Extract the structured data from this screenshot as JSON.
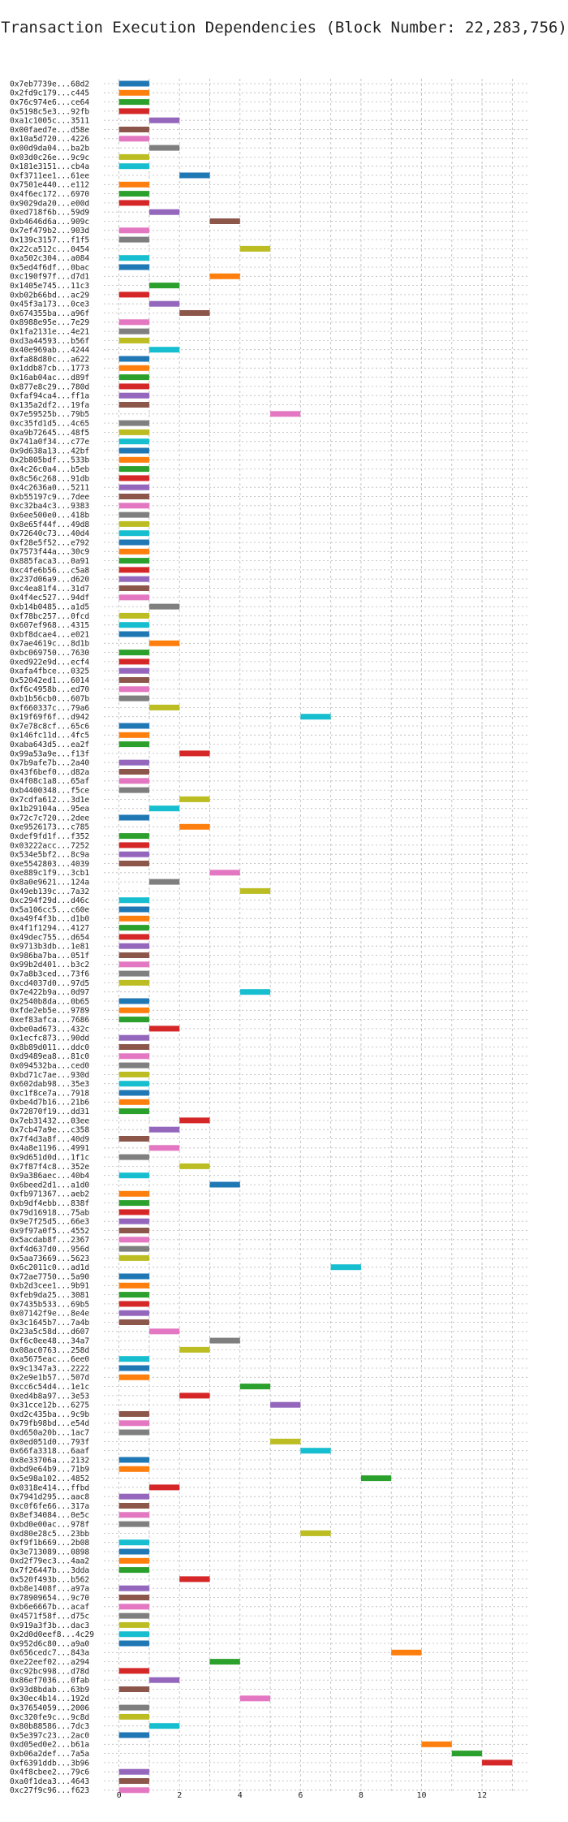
{
  "chart_data": {
    "type": "bar",
    "orientation": "horizontal",
    "title": "Transaction Execution Dependencies (Block Number: 22,283,756)",
    "xlabel": "",
    "ylabel": "",
    "xlim": [
      -0.5,
      13.5
    ],
    "xticks": [
      0,
      2,
      4,
      6,
      8,
      10,
      12
    ],
    "grid": true,
    "palette": [
      "#1f77b4",
      "#ff7f0e",
      "#2ca02c",
      "#d62728",
      "#9467bd",
      "#8c564b",
      "#e377c2",
      "#7f7f7f",
      "#bcbd22",
      "#17becf"
    ],
    "transactions": [
      {
        "label": "0x7eb7739e...68d2",
        "start": 0,
        "end": 1
      },
      {
        "label": "0x2fd9c179...c445",
        "start": 0,
        "end": 1
      },
      {
        "label": "0x76c974e6...ce64",
        "start": 0,
        "end": 1
      },
      {
        "label": "0x5198c5e3...92fb",
        "start": 0,
        "end": 1
      },
      {
        "label": "0xa1c1005c...3511",
        "start": 1,
        "end": 2
      },
      {
        "label": "0x00faed7e...d58e",
        "start": 0,
        "end": 1
      },
      {
        "label": "0x10a5d720...4226",
        "start": 0,
        "end": 1
      },
      {
        "label": "0x00d9da04...ba2b",
        "start": 1,
        "end": 2
      },
      {
        "label": "0x03d0c26e...9c9c",
        "start": 0,
        "end": 1
      },
      {
        "label": "0x181e3151...cb4a",
        "start": 0,
        "end": 1
      },
      {
        "label": "0xf3711ee1...61ee",
        "start": 2,
        "end": 3
      },
      {
        "label": "0x7501e440...e112",
        "start": 0,
        "end": 1
      },
      {
        "label": "0x4f6ec172...6970",
        "start": 0,
        "end": 1
      },
      {
        "label": "0x9029da20...e00d",
        "start": 0,
        "end": 1
      },
      {
        "label": "0xed718f6b...59d9",
        "start": 1,
        "end": 2
      },
      {
        "label": "0xb4646d6a...909c",
        "start": 3,
        "end": 4
      },
      {
        "label": "0x7ef479b2...903d",
        "start": 0,
        "end": 1
      },
      {
        "label": "0x139c3157...f1f5",
        "start": 0,
        "end": 1
      },
      {
        "label": "0x22ca512c...0454",
        "start": 4,
        "end": 5
      },
      {
        "label": "0xa502c304...a084",
        "start": 0,
        "end": 1
      },
      {
        "label": "0x5ed4f6df...0bac",
        "start": 0,
        "end": 1
      },
      {
        "label": "0xc190f97f...d7d1",
        "start": 3,
        "end": 4
      },
      {
        "label": "0x1405e745...11c3",
        "start": 1,
        "end": 2
      },
      {
        "label": "0xb02b66bd...ac29",
        "start": 0,
        "end": 1
      },
      {
        "label": "0x45f3a173...0ce3",
        "start": 1,
        "end": 2
      },
      {
        "label": "0x674355ba...a96f",
        "start": 2,
        "end": 3
      },
      {
        "label": "0x8988e95e...7e29",
        "start": 0,
        "end": 1
      },
      {
        "label": "0x1fa2131e...4e21",
        "start": 0,
        "end": 1
      },
      {
        "label": "0xd3a44593...b56f",
        "start": 0,
        "end": 1
      },
      {
        "label": "0x40e969ab...4244",
        "start": 1,
        "end": 2
      },
      {
        "label": "0xfa88d80c...a622",
        "start": 0,
        "end": 1
      },
      {
        "label": "0x1ddb87cb...1773",
        "start": 0,
        "end": 1
      },
      {
        "label": "0x16ab04ac...d89f",
        "start": 0,
        "end": 1
      },
      {
        "label": "0x877e8c29...780d",
        "start": 0,
        "end": 1
      },
      {
        "label": "0xfaf94ca4...ff1a",
        "start": 0,
        "end": 1
      },
      {
        "label": "0x135a2df2...19fa",
        "start": 0,
        "end": 1
      },
      {
        "label": "0x7e59525b...79b5",
        "start": 5,
        "end": 6
      },
      {
        "label": "0xc35fd1d5...4c65",
        "start": 0,
        "end": 1
      },
      {
        "label": "0xa9b72645...48f5",
        "start": 0,
        "end": 1
      },
      {
        "label": "0x741a0f34...c77e",
        "start": 0,
        "end": 1
      },
      {
        "label": "0x9d638a13...42bf",
        "start": 0,
        "end": 1
      },
      {
        "label": "0x2b805bdf...533b",
        "start": 0,
        "end": 1
      },
      {
        "label": "0x4c26c0a4...b5eb",
        "start": 0,
        "end": 1
      },
      {
        "label": "0x8c56c268...91db",
        "start": 0,
        "end": 1
      },
      {
        "label": "0x4c2636a0...5211",
        "start": 0,
        "end": 1
      },
      {
        "label": "0xb55197c9...7dee",
        "start": 0,
        "end": 1
      },
      {
        "label": "0xc32ba4c3...9383",
        "start": 0,
        "end": 1
      },
      {
        "label": "0x6ee500e0...418b",
        "start": 0,
        "end": 1
      },
      {
        "label": "0x8e65f44f...49d8",
        "start": 0,
        "end": 1
      },
      {
        "label": "0x72640c73...40d4",
        "start": 0,
        "end": 1
      },
      {
        "label": "0xf28e5f52...e792",
        "start": 0,
        "end": 1
      },
      {
        "label": "0x7573f44a...30c9",
        "start": 0,
        "end": 1
      },
      {
        "label": "0x885faca3...0a91",
        "start": 0,
        "end": 1
      },
      {
        "label": "0xc4fe6b56...c5a8",
        "start": 0,
        "end": 1
      },
      {
        "label": "0x237d06a9...d620",
        "start": 0,
        "end": 1
      },
      {
        "label": "0xc4ea81f4...31d7",
        "start": 0,
        "end": 1
      },
      {
        "label": "0x4f4ec527...94df",
        "start": 0,
        "end": 1
      },
      {
        "label": "0xb14b0485...a1d5",
        "start": 1,
        "end": 2
      },
      {
        "label": "0xf78bc257...0fcd",
        "start": 0,
        "end": 1
      },
      {
        "label": "0x607ef968...4315",
        "start": 0,
        "end": 1
      },
      {
        "label": "0xbf8dcae4...e021",
        "start": 0,
        "end": 1
      },
      {
        "label": "0x7ae4619c...8d1b",
        "start": 1,
        "end": 2
      },
      {
        "label": "0xbc069750...7630",
        "start": 0,
        "end": 1
      },
      {
        "label": "0xed922e9d...ecf4",
        "start": 0,
        "end": 1
      },
      {
        "label": "0xafa4fbce...0325",
        "start": 0,
        "end": 1
      },
      {
        "label": "0x52042ed1...6014",
        "start": 0,
        "end": 1
      },
      {
        "label": "0xf6c4958b...ed70",
        "start": 0,
        "end": 1
      },
      {
        "label": "0xb1b56cb0...607b",
        "start": 0,
        "end": 1
      },
      {
        "label": "0xf660337c...79a6",
        "start": 1,
        "end": 2
      },
      {
        "label": "0x19f69f6f...d942",
        "start": 6,
        "end": 7
      },
      {
        "label": "0x7e78c8cf...65c6",
        "start": 0,
        "end": 1
      },
      {
        "label": "0x146fc11d...4fc5",
        "start": 0,
        "end": 1
      },
      {
        "label": "0xaba643d5...ea2f",
        "start": 0,
        "end": 1
      },
      {
        "label": "0x99a53a9e...f13f",
        "start": 2,
        "end": 3
      },
      {
        "label": "0x7b9afe7b...2a40",
        "start": 0,
        "end": 1
      },
      {
        "label": "0x43f6bef0...d82a",
        "start": 0,
        "end": 1
      },
      {
        "label": "0x4f08c1a8...65af",
        "start": 0,
        "end": 1
      },
      {
        "label": "0xb4400348...f5ce",
        "start": 0,
        "end": 1
      },
      {
        "label": "0x7cdfa612...3d1e",
        "start": 2,
        "end": 3
      },
      {
        "label": "0x1b29104a...95ea",
        "start": 1,
        "end": 2
      },
      {
        "label": "0x72c7c720...2dee",
        "start": 0,
        "end": 1
      },
      {
        "label": "0xe9526173...c785",
        "start": 2,
        "end": 3
      },
      {
        "label": "0xdef9fd1f...f352",
        "start": 0,
        "end": 1
      },
      {
        "label": "0x03222acc...7252",
        "start": 0,
        "end": 1
      },
      {
        "label": "0x534e5bf2...8c9a",
        "start": 0,
        "end": 1
      },
      {
        "label": "0xe5542803...4039",
        "start": 0,
        "end": 1
      },
      {
        "label": "0xe889c1f9...3cb1",
        "start": 3,
        "end": 4
      },
      {
        "label": "0x8a0e9621...124a",
        "start": 1,
        "end": 2
      },
      {
        "label": "0x49eb139c...7a32",
        "start": 4,
        "end": 5
      },
      {
        "label": "0xc294f29d...d46c",
        "start": 0,
        "end": 1
      },
      {
        "label": "0x5a106cc5...c60e",
        "start": 0,
        "end": 1
      },
      {
        "label": "0xa49f4f3b...d1b0",
        "start": 0,
        "end": 1
      },
      {
        "label": "0x4f1f1294...4127",
        "start": 0,
        "end": 1
      },
      {
        "label": "0x49dec755...d654",
        "start": 0,
        "end": 1
      },
      {
        "label": "0x9713b3db...1e81",
        "start": 0,
        "end": 1
      },
      {
        "label": "0x986ba7ba...051f",
        "start": 0,
        "end": 1
      },
      {
        "label": "0x99b2d401...b3c2",
        "start": 0,
        "end": 1
      },
      {
        "label": "0x7a8b3ced...73f6",
        "start": 0,
        "end": 1
      },
      {
        "label": "0xcd4037d0...97d5",
        "start": 0,
        "end": 1
      },
      {
        "label": "0x7e422b9a...0d97",
        "start": 4,
        "end": 5
      },
      {
        "label": "0x2540b8da...0b65",
        "start": 0,
        "end": 1
      },
      {
        "label": "0xfde2eb5e...9789",
        "start": 0,
        "end": 1
      },
      {
        "label": "0xef83afca...7686",
        "start": 0,
        "end": 1
      },
      {
        "label": "0xbe0ad673...432c",
        "start": 1,
        "end": 2
      },
      {
        "label": "0x1ecfc873...90dd",
        "start": 0,
        "end": 1
      },
      {
        "label": "0x8b89d011...ddc0",
        "start": 0,
        "end": 1
      },
      {
        "label": "0xd9489ea8...81c0",
        "start": 0,
        "end": 1
      },
      {
        "label": "0x094532ba...ced0",
        "start": 0,
        "end": 1
      },
      {
        "label": "0xbd71c7ae...930d",
        "start": 0,
        "end": 1
      },
      {
        "label": "0x602dab98...35e3",
        "start": 0,
        "end": 1
      },
      {
        "label": "0xc1f8ce7a...7918",
        "start": 0,
        "end": 1
      },
      {
        "label": "0xbe4d7b16...21b6",
        "start": 0,
        "end": 1
      },
      {
        "label": "0x72870f19...dd31",
        "start": 0,
        "end": 1
      },
      {
        "label": "0x7eb31432...03ee",
        "start": 2,
        "end": 3
      },
      {
        "label": "0x7cb47a9e...c358",
        "start": 1,
        "end": 2
      },
      {
        "label": "0x7f4d3a8f...40d9",
        "start": 0,
        "end": 1
      },
      {
        "label": "0x4a8e1196...4991",
        "start": 1,
        "end": 2
      },
      {
        "label": "0x9d651d0d...1f1c",
        "start": 0,
        "end": 1
      },
      {
        "label": "0x7f87f4c8...352e",
        "start": 2,
        "end": 3
      },
      {
        "label": "0x9a386aec...40b4",
        "start": 0,
        "end": 1
      },
      {
        "label": "0x6beed2d1...a1d0",
        "start": 3,
        "end": 4
      },
      {
        "label": "0xfb971367...aeb2",
        "start": 0,
        "end": 1
      },
      {
        "label": "0xb9df4ebb...838f",
        "start": 0,
        "end": 1
      },
      {
        "label": "0x79d16918...75ab",
        "start": 0,
        "end": 1
      },
      {
        "label": "0x9e7f25d5...66e3",
        "start": 0,
        "end": 1
      },
      {
        "label": "0x9f97a0f5...4552",
        "start": 0,
        "end": 1
      },
      {
        "label": "0x5acdab8f...2367",
        "start": 0,
        "end": 1
      },
      {
        "label": "0xf4d637d0...956d",
        "start": 0,
        "end": 1
      },
      {
        "label": "0x5aa73669...5623",
        "start": 0,
        "end": 1
      },
      {
        "label": "0x6c2011c0...ad1d",
        "start": 7,
        "end": 8
      },
      {
        "label": "0x72ae7750...5a90",
        "start": 0,
        "end": 1
      },
      {
        "label": "0xb2d3cee1...9b91",
        "start": 0,
        "end": 1
      },
      {
        "label": "0xfeb9da25...3081",
        "start": 0,
        "end": 1
      },
      {
        "label": "0x7435b533...69b5",
        "start": 0,
        "end": 1
      },
      {
        "label": "0x07142f9e...8e4e",
        "start": 0,
        "end": 1
      },
      {
        "label": "0x3c1645b7...7a4b",
        "start": 0,
        "end": 1
      },
      {
        "label": "0x23a5c58d...d607",
        "start": 1,
        "end": 2
      },
      {
        "label": "0xf6c0ee48...34a7",
        "start": 3,
        "end": 4
      },
      {
        "label": "0x08ac0763...258d",
        "start": 2,
        "end": 3
      },
      {
        "label": "0xa5675eac...6ee0",
        "start": 0,
        "end": 1
      },
      {
        "label": "0x9c1347a3...2222",
        "start": 0,
        "end": 1
      },
      {
        "label": "0x2e9e1b57...507d",
        "start": 0,
        "end": 1
      },
      {
        "label": "0xcc6c54d4...1e1c",
        "start": 4,
        "end": 5
      },
      {
        "label": "0xed4b8a97...3e53",
        "start": 2,
        "end": 3
      },
      {
        "label": "0x31cce12b...6275",
        "start": 5,
        "end": 6
      },
      {
        "label": "0xd2c435ba...9c9b",
        "start": 0,
        "end": 1
      },
      {
        "label": "0x79fb98bd...e54d",
        "start": 0,
        "end": 1
      },
      {
        "label": "0xd650a20b...1ac7",
        "start": 0,
        "end": 1
      },
      {
        "label": "0x0ed051d0...793f",
        "start": 5,
        "end": 6
      },
      {
        "label": "0x66fa3318...6aaf",
        "start": 6,
        "end": 7
      },
      {
        "label": "0x8e33706a...2132",
        "start": 0,
        "end": 1
      },
      {
        "label": "0xbd9e64b9...71b9",
        "start": 0,
        "end": 1
      },
      {
        "label": "0x5e98a102...4852",
        "start": 8,
        "end": 9
      },
      {
        "label": "0x0318e414...ffbd",
        "start": 1,
        "end": 2
      },
      {
        "label": "0x7941d295...aac8",
        "start": 0,
        "end": 1
      },
      {
        "label": "0xc0f6fe66...317a",
        "start": 0,
        "end": 1
      },
      {
        "label": "0x8ef34084...0e5c",
        "start": 0,
        "end": 1
      },
      {
        "label": "0xbd0e00ac...978f",
        "start": 0,
        "end": 1
      },
      {
        "label": "0xd80e28c5...23bb",
        "start": 6,
        "end": 7
      },
      {
        "label": "0xf9f1b669...2b08",
        "start": 0,
        "end": 1
      },
      {
        "label": "0x3e713089...0898",
        "start": 0,
        "end": 1
      },
      {
        "label": "0xd2f79ec3...4aa2",
        "start": 0,
        "end": 1
      },
      {
        "label": "0x7f26447b...3dda",
        "start": 0,
        "end": 1
      },
      {
        "label": "0x520f493b...b562",
        "start": 2,
        "end": 3
      },
      {
        "label": "0xb8e1408f...a97a",
        "start": 0,
        "end": 1
      },
      {
        "label": "0x78909654...9c70",
        "start": 0,
        "end": 1
      },
      {
        "label": "0xb6e6667b...acaf",
        "start": 0,
        "end": 1
      },
      {
        "label": "0x4571f58f...d75c",
        "start": 0,
        "end": 1
      },
      {
        "label": "0x919a3f3b...dac3",
        "start": 0,
        "end": 1
      },
      {
        "label": "0x2d0d0eef8...4c29",
        "start": 0,
        "end": 1
      },
      {
        "label": "0x952d6c80...a9a0",
        "start": 0,
        "end": 1
      },
      {
        "label": "0x656cedc7...843a",
        "start": 9,
        "end": 10
      },
      {
        "label": "0xe22eef02...a294",
        "start": 3,
        "end": 4
      },
      {
        "label": "0xc92bc998...d78d",
        "start": 0,
        "end": 1
      },
      {
        "label": "0x86ef7036...0fab",
        "start": 1,
        "end": 2
      },
      {
        "label": "0x93d8bdab...63b9",
        "start": 0,
        "end": 1
      },
      {
        "label": "0x30ec4b14...192d",
        "start": 4,
        "end": 5
      },
      {
        "label": "0x37654059...2006",
        "start": 0,
        "end": 1
      },
      {
        "label": "0xc320fe9c...9c8d",
        "start": 0,
        "end": 1
      },
      {
        "label": "0x80b88586...7dc3",
        "start": 1,
        "end": 2
      },
      {
        "label": "0x5e397c23...2ac0",
        "start": 0,
        "end": 1
      },
      {
        "label": "0xd05ed0e2...b61a",
        "start": 10,
        "end": 11
      },
      {
        "label": "0xb06a2def...7a5a",
        "start": 11,
        "end": 12
      },
      {
        "label": "0xf6391ddb...3b96",
        "start": 12,
        "end": 13
      },
      {
        "label": "0x4f8cbee2...79c6",
        "start": 0,
        "end": 1
      },
      {
        "label": "0xa0f1dea3...4643",
        "start": 0,
        "end": 1
      },
      {
        "label": "0xc27f9c96...f623",
        "start": 0,
        "end": 1
      }
    ]
  }
}
